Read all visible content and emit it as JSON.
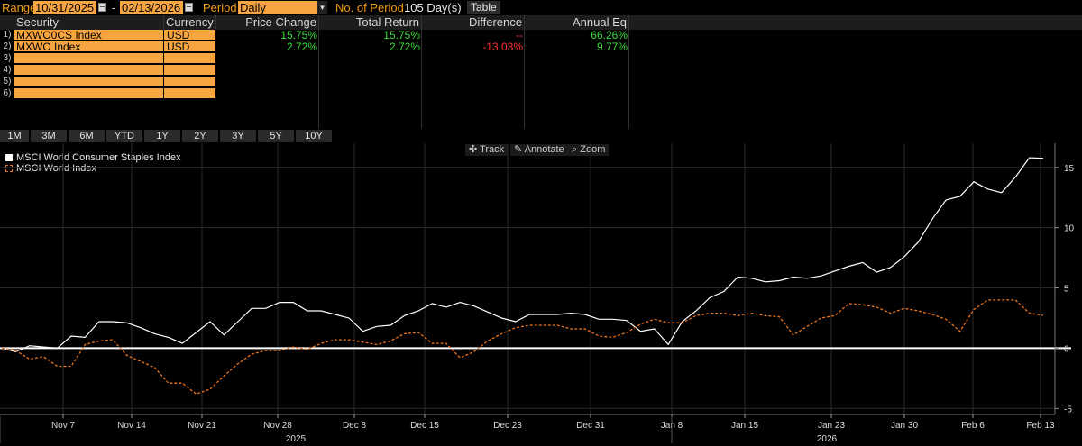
{
  "toolbar": {
    "range_label": "Range",
    "start_date": "10/31/2025",
    "dash": "-",
    "end_date": "02/13/2026",
    "period_label": "Period",
    "period_value": "Daily",
    "num_period_label": "No. of Period",
    "num_period_value": "105 Day(s)",
    "table_button": "Table"
  },
  "table": {
    "headers": [
      "Security",
      "Currency",
      "Price Change",
      "Total Return",
      "Difference",
      "Annual Eq"
    ],
    "rows": [
      {
        "num": "1)",
        "security": "MXWO0CS Index",
        "currency": "USD",
        "price_change": "15.75%",
        "total_return": "15.75%",
        "difference": "--",
        "annual_eq": "66.26%"
      },
      {
        "num": "2)",
        "security": "MXWO Index",
        "currency": "USD",
        "price_change": "2.72%",
        "total_return": "2.72%",
        "difference": "-13.03%",
        "annual_eq": "9.77%"
      },
      {
        "num": "3)",
        "security": "",
        "currency": "",
        "price_change": "",
        "total_return": "",
        "difference": "",
        "annual_eq": ""
      },
      {
        "num": "4)",
        "security": "",
        "currency": "",
        "price_change": "",
        "total_return": "",
        "difference": "",
        "annual_eq": ""
      },
      {
        "num": "5)",
        "security": "",
        "currency": "",
        "price_change": "",
        "total_return": "",
        "difference": "",
        "annual_eq": ""
      },
      {
        "num": "6)",
        "security": "",
        "currency": "",
        "price_change": "",
        "total_return": "",
        "difference": "",
        "annual_eq": ""
      }
    ]
  },
  "periods": [
    "1M",
    "3M",
    "6M",
    "YTD",
    "1Y",
    "2Y",
    "3Y",
    "5Y",
    "10Y"
  ],
  "chart_tools": {
    "track": "Track",
    "annotate": "Annotate",
    "zoom": "Zoom"
  },
  "colors": {
    "positive": "#3ddc3d",
    "negative": "#ff3333",
    "accent": "#f7a540",
    "series1": "#ffffff",
    "series2": "#e8731f"
  },
  "chart_data": {
    "type": "line",
    "x_ticks": [
      "Nov 7",
      "Nov 14",
      "Nov 21",
      "Nov 28",
      "Dec 8",
      "Dec 15",
      "Dec 23",
      "Dec 31",
      "Jan 8",
      "Jan 15",
      "Jan 23",
      "Jan 30",
      "Feb 6",
      "Feb 13"
    ],
    "year_labels": [
      "2025",
      "2026"
    ],
    "y_ticks": [
      "15",
      "10",
      "5",
      "0",
      "-5"
    ],
    "ylim": [
      -5.5,
      17
    ],
    "legend_position": "top-left",
    "series": [
      {
        "name": "MSCI World Consumer Staples Index",
        "style": "solid",
        "values": [
          0,
          -0.3,
          0.2,
          0.1,
          0,
          1,
          0.9,
          2.2,
          2.2,
          2.1,
          1.7,
          1.2,
          0.9,
          0.4,
          1.3,
          2.2,
          1.1,
          2.2,
          3.3,
          3.3,
          3.8,
          3.8,
          3.1,
          3.1,
          2.8,
          2.5,
          1.4,
          1.8,
          1.9,
          2.7,
          3.1,
          3.7,
          3.4,
          3.8,
          3.5,
          3.0,
          2.5,
          2.2,
          2.8,
          2.8,
          2.8,
          2.9,
          2.8,
          2.4,
          2.4,
          2.3,
          1.4,
          1.6,
          0.3,
          2.2,
          3.1,
          4.2,
          4.7,
          5.9,
          5.8,
          5.5,
          5.6,
          5.9,
          5.8,
          6.0,
          6.4,
          6.8,
          7.1,
          6.3,
          6.7,
          7.6,
          8.8,
          10.7,
          12.3,
          12.6,
          13.8,
          13.2,
          12.9,
          14.2,
          15.8,
          15.75
        ]
      },
      {
        "name": "MSCI World Index",
        "style": "dashed",
        "values": [
          0,
          -0.2,
          -0.9,
          -0.7,
          -1.5,
          -1.5,
          0.3,
          0.6,
          0.7,
          -0.6,
          -1.1,
          -1.6,
          -2.9,
          -2.9,
          -3.8,
          -3.4,
          -2.3,
          -1.3,
          -0.5,
          -0.2,
          -0.2,
          0.1,
          -0.1,
          0.4,
          0.7,
          0.7,
          0.5,
          0.3,
          0.6,
          1.2,
          1.3,
          0.4,
          0.4,
          -0.8,
          -0.3,
          0.6,
          1.2,
          1.7,
          1.9,
          1.9,
          1.9,
          1.6,
          1.6,
          1.0,
          0.9,
          1.3,
          2.0,
          2.4,
          2.1,
          2.1,
          2.7,
          2.9,
          2.9,
          2.7,
          2.9,
          2.7,
          2.6,
          1.1,
          1.8,
          2.5,
          2.7,
          3.7,
          3.6,
          3.4,
          2.9,
          3.3,
          3.1,
          2.8,
          2.4,
          1.4,
          3.2,
          4.0,
          4.0,
          4.0,
          2.9,
          2.72
        ]
      }
    ]
  }
}
